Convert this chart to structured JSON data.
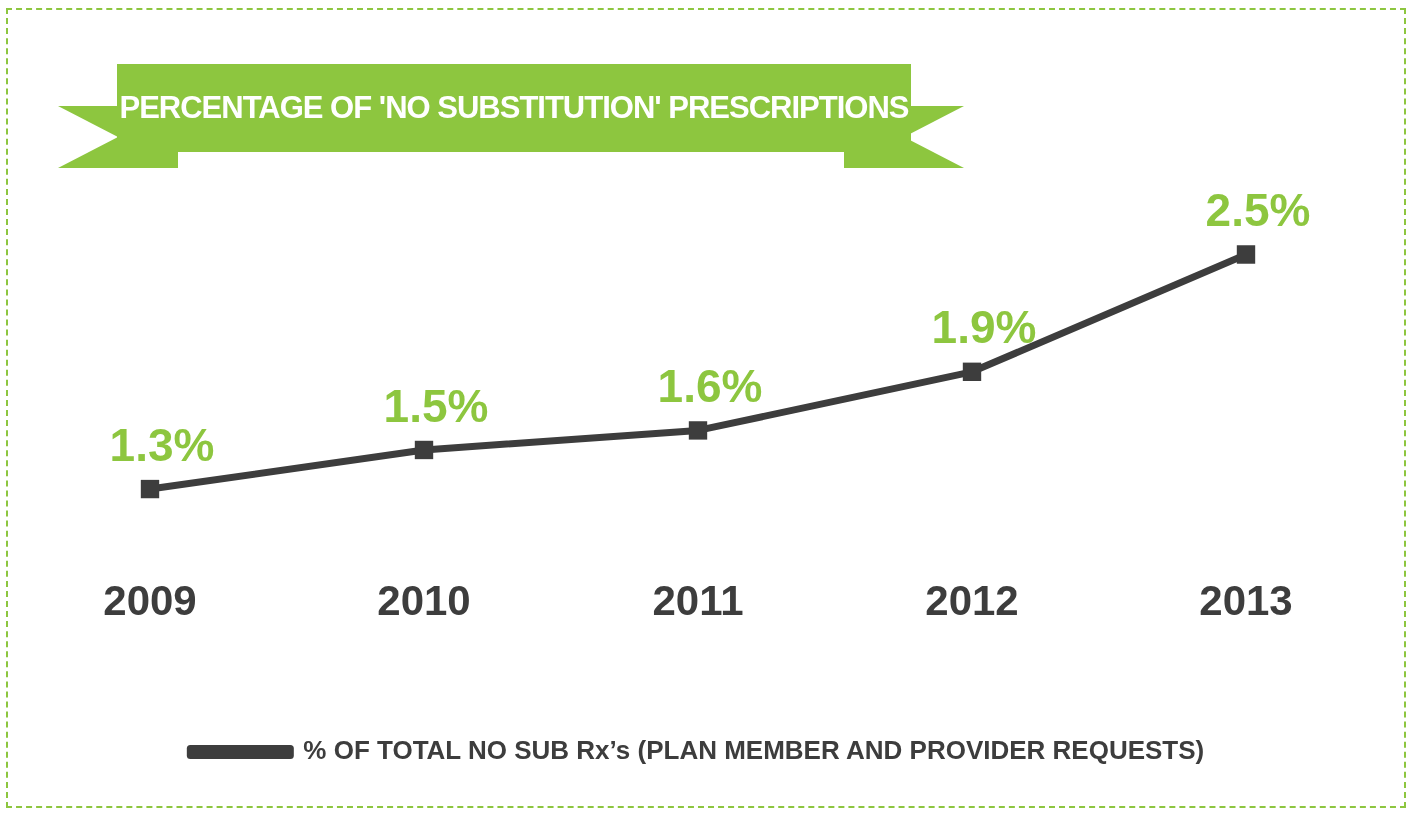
{
  "chart_data": {
    "type": "line",
    "title": "PERCENTAGE OF 'NO SUBSTITUTION' PRESCRIPTIONS",
    "categories": [
      "2009",
      "2010",
      "2011",
      "2012",
      "2013"
    ],
    "series": [
      {
        "name": "% OF TOTAL NO SUB Rx’s (PLAN MEMBER AND PROVIDER REQUESTS)",
        "color": "#3d3d3d",
        "values": [
          1.3,
          1.5,
          1.6,
          1.9,
          2.5
        ],
        "value_labels": [
          "1.3%",
          "1.5%",
          "1.6%",
          "1.9%",
          "2.5%"
        ]
      }
    ],
    "marker": "square",
    "legend": "bottom",
    "grid": false,
    "tick_labels": "x"
  }
}
